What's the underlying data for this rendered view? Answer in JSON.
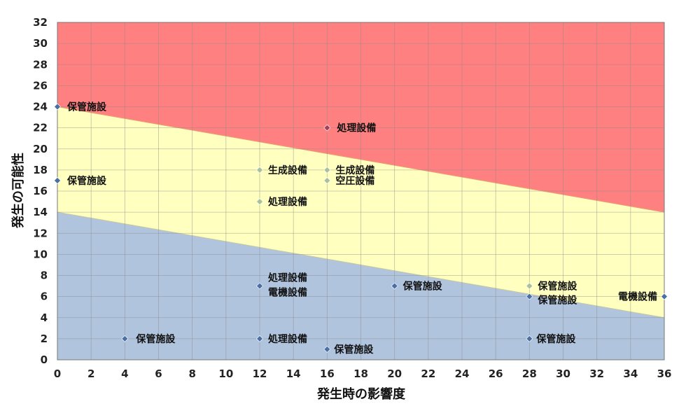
{
  "chart_data": {
    "type": "scatter",
    "xlabel": "発生時の影響度",
    "ylabel": "発生の可能性",
    "xlim": [
      0,
      36
    ],
    "ylim": [
      0,
      32
    ],
    "x_ticks": [
      0,
      2,
      4,
      6,
      8,
      10,
      12,
      14,
      16,
      18,
      20,
      22,
      24,
      26,
      28,
      30,
      32,
      34,
      36
    ],
    "y_ticks": [
      0,
      2,
      4,
      6,
      8,
      10,
      12,
      14,
      16,
      18,
      20,
      22,
      24,
      26,
      28,
      30,
      32
    ],
    "grid": true,
    "zones": [
      {
        "name": "high",
        "color": "#ff8080",
        "lower_boundary": [
          [
            0,
            24
          ],
          [
            36,
            14
          ]
        ]
      },
      {
        "name": "medium",
        "color": "#ffffc0",
        "lower_boundary": [
          [
            0,
            14
          ],
          [
            36,
            4
          ]
        ]
      },
      {
        "name": "low",
        "color": "#b0c4de"
      }
    ],
    "points": [
      {
        "x": 0,
        "y": 24,
        "label": "保管施設",
        "color": "#4a6fa5"
      },
      {
        "x": 0,
        "y": 17,
        "label": "保管施設",
        "color": "#4a6fa5"
      },
      {
        "x": 16,
        "y": 22,
        "label": "処理設備",
        "color": "#a0405a"
      },
      {
        "x": 12,
        "y": 18,
        "label": "生成設備",
        "color": "#a8c0a0"
      },
      {
        "x": 16,
        "y": 18,
        "label": "生成設備",
        "color": "#a8c0a0"
      },
      {
        "x": 16,
        "y": 17,
        "label": "空圧設備",
        "color": "#a8c0a0"
      },
      {
        "x": 12,
        "y": 15,
        "label": "処理設備",
        "color": "#a8c0a0"
      },
      {
        "x": 12,
        "y": 7,
        "label": "処理設備 / 電機設備",
        "color": "#4a6fa5"
      },
      {
        "x": 20,
        "y": 7,
        "label": "保管施設",
        "color": "#4a6fa5"
      },
      {
        "x": 28,
        "y": 7,
        "label": "保管施設",
        "color": "#a8c0a0"
      },
      {
        "x": 28,
        "y": 6,
        "label": "保管施設",
        "color": "#4a6fa5"
      },
      {
        "x": 36,
        "y": 6,
        "label": "電機設備",
        "color": "#4a6fa5"
      },
      {
        "x": 4,
        "y": 2,
        "label": "保管施設",
        "color": "#4a6fa5"
      },
      {
        "x": 12,
        "y": 2,
        "label": "処理設備",
        "color": "#4a6fa5"
      },
      {
        "x": 16,
        "y": 1,
        "label": "保管施設",
        "color": "#4a6fa5"
      },
      {
        "x": 28,
        "y": 2,
        "label": "保管施設",
        "color": "#4a6fa5"
      }
    ],
    "point_labels": [
      "保管施設",
      "保管施設",
      "処理設備",
      "生成設備",
      "生成設備",
      "空圧設備",
      "処理設備",
      "処理設備",
      "電機設備",
      "保管施設",
      "保管施設",
      "保管施設",
      "電機設備",
      "保管施設",
      "処理設備",
      "保管施設",
      "保管施設"
    ]
  }
}
